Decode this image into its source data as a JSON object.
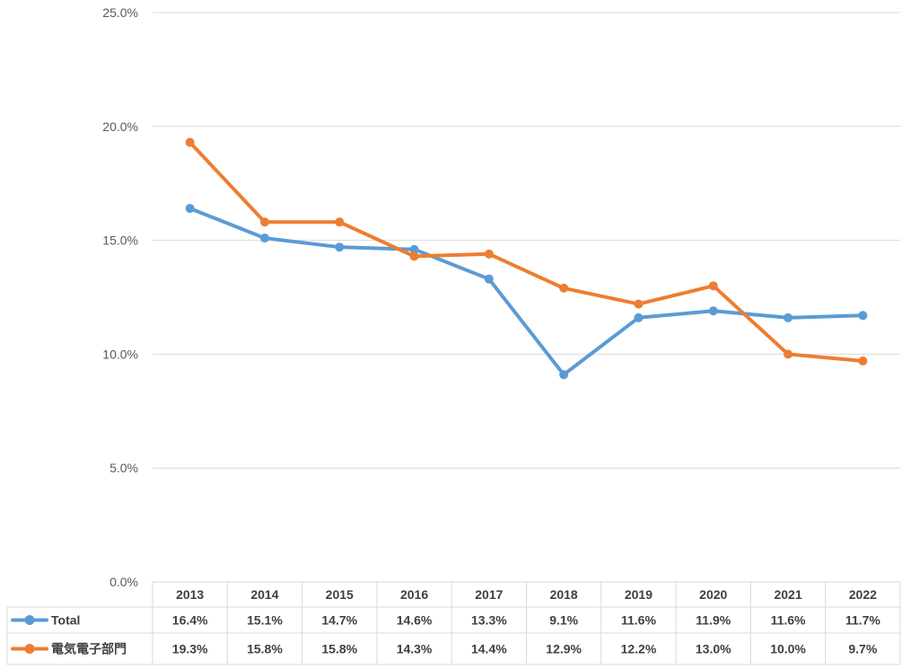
{
  "chart_data": {
    "type": "line",
    "categories": [
      "2013",
      "2014",
      "2015",
      "2016",
      "2017",
      "2018",
      "2019",
      "2020",
      "2021",
      "2022"
    ],
    "series": [
      {
        "name": "Total",
        "color": "#5B9BD5",
        "values": [
          16.4,
          15.1,
          14.7,
          14.6,
          13.3,
          9.1,
          11.6,
          11.9,
          11.6,
          11.7
        ],
        "labels": [
          "16.4%",
          "15.1%",
          "14.7%",
          "14.6%",
          "13.3%",
          "9.1%",
          "11.6%",
          "11.9%",
          "11.6%",
          "11.7%"
        ]
      },
      {
        "name": "電気電子部門",
        "color": "#ED7D31",
        "values": [
          19.3,
          15.8,
          15.8,
          14.3,
          14.4,
          12.9,
          12.2,
          13.0,
          10.0,
          9.7
        ],
        "labels": [
          "19.3%",
          "15.8%",
          "15.8%",
          "14.3%",
          "14.4%",
          "12.9%",
          "12.2%",
          "13.0%",
          "10.0%",
          "9.7%"
        ]
      }
    ],
    "yticks": [
      0,
      5,
      10,
      15,
      20,
      25
    ],
    "ytick_labels": [
      "0.0%",
      "5.0%",
      "10.0%",
      "15.0%",
      "20.0%",
      "25.0%"
    ],
    "ylim": [
      0,
      25
    ],
    "grid": true,
    "legend": "data-table",
    "title": "",
    "xlabel": "",
    "ylabel": ""
  }
}
